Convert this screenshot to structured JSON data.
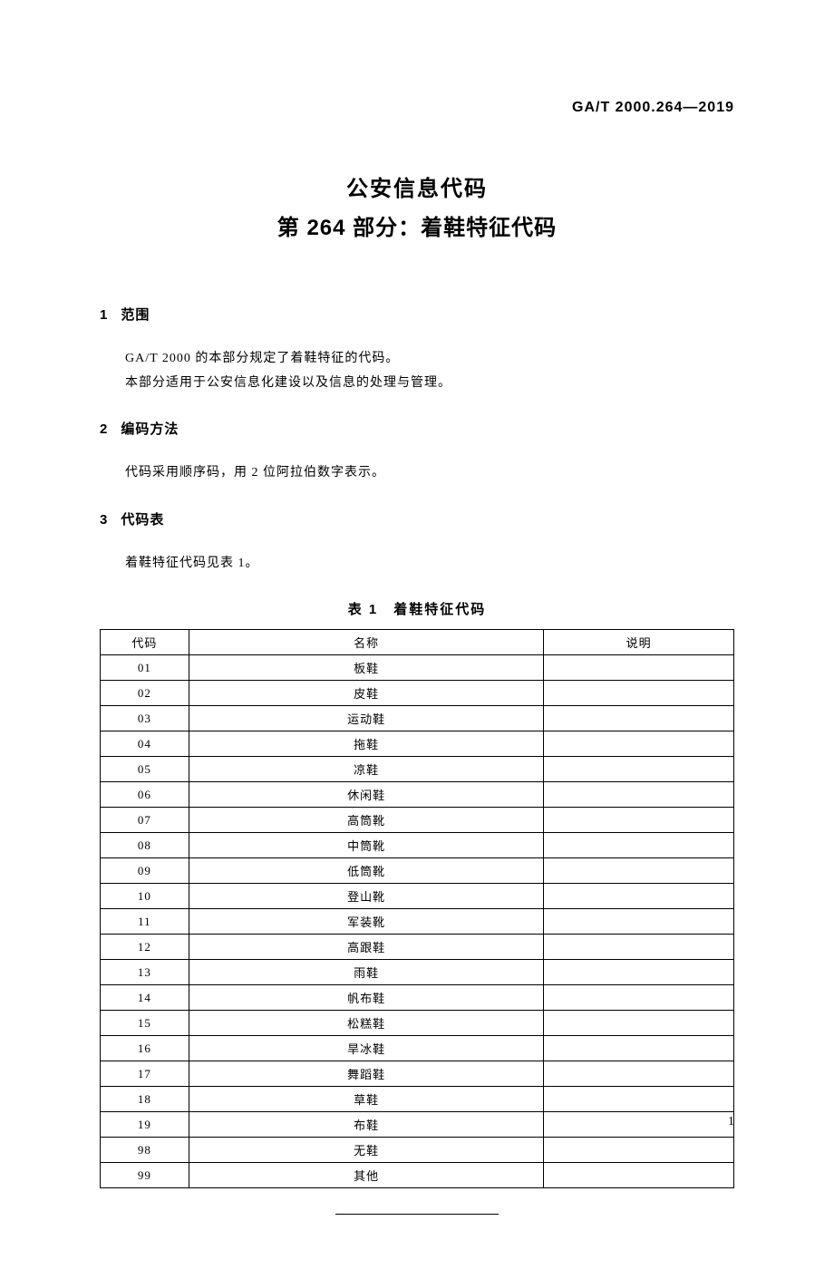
{
  "header": {
    "standard_code": "GA/T 2000.264—2019"
  },
  "title": {
    "line1": "公安信息代码",
    "line2": "第 264 部分：着鞋特征代码"
  },
  "sections": [
    {
      "number": "1",
      "heading": "范围",
      "paragraphs": [
        "GA/T 2000 的本部分规定了着鞋特征的代码。",
        "本部分适用于公安信息化建设以及信息的处理与管理。"
      ]
    },
    {
      "number": "2",
      "heading": "编码方法",
      "paragraphs": [
        "代码采用顺序码，用 2 位阿拉伯数字表示。"
      ]
    },
    {
      "number": "3",
      "heading": "代码表",
      "paragraphs": [
        "着鞋特征代码见表 1。"
      ]
    }
  ],
  "table": {
    "caption": "表 1　着鞋特征代码",
    "columns": [
      "代码",
      "名称",
      "说明"
    ],
    "rows": [
      [
        "01",
        "板鞋",
        ""
      ],
      [
        "02",
        "皮鞋",
        ""
      ],
      [
        "03",
        "运动鞋",
        ""
      ],
      [
        "04",
        "拖鞋",
        ""
      ],
      [
        "05",
        "凉鞋",
        ""
      ],
      [
        "06",
        "休闲鞋",
        ""
      ],
      [
        "07",
        "高筒靴",
        ""
      ],
      [
        "08",
        "中筒靴",
        ""
      ],
      [
        "09",
        "低筒靴",
        ""
      ],
      [
        "10",
        "登山靴",
        ""
      ],
      [
        "11",
        "军装靴",
        ""
      ],
      [
        "12",
        "高跟鞋",
        ""
      ],
      [
        "13",
        "雨鞋",
        ""
      ],
      [
        "14",
        "帆布鞋",
        ""
      ],
      [
        "15",
        "松糕鞋",
        ""
      ],
      [
        "16",
        "旱冰鞋",
        ""
      ],
      [
        "17",
        "舞蹈鞋",
        ""
      ],
      [
        "18",
        "草鞋",
        ""
      ],
      [
        "19",
        "布鞋",
        ""
      ],
      [
        "98",
        "无鞋",
        ""
      ],
      [
        "99",
        "其他",
        ""
      ]
    ]
  },
  "page_number": "1"
}
